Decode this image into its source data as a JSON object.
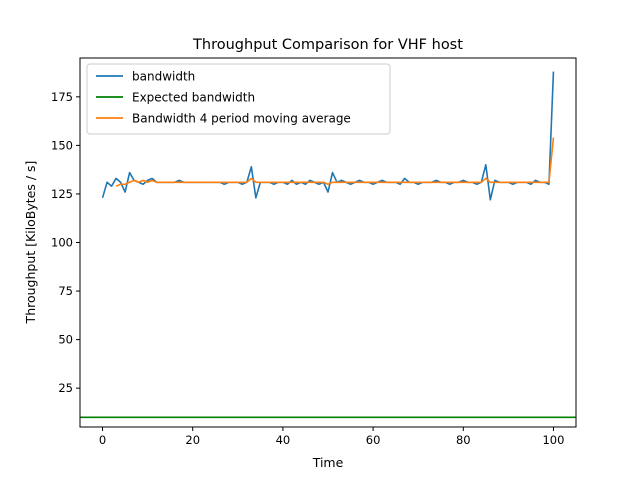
{
  "chart_data": {
    "type": "line",
    "title": "Throughput Comparison for VHF host",
    "xlabel": "Time",
    "ylabel": "Throughput [KiloBytes / s]",
    "xlim": [
      -5,
      105
    ],
    "ylim": [
      5,
      195
    ],
    "xticks": [
      0,
      20,
      40,
      60,
      80,
      100
    ],
    "yticks": [
      25,
      50,
      75,
      100,
      125,
      150,
      175
    ],
    "legend_position": "top-left",
    "series": [
      {
        "name": "bandwidth",
        "color": "#1f77b4",
        "x": [
          0,
          1,
          2,
          3,
          4,
          5,
          6,
          7,
          8,
          9,
          10,
          11,
          12,
          13,
          14,
          15,
          16,
          17,
          18,
          19,
          20,
          21,
          22,
          23,
          24,
          25,
          26,
          27,
          28,
          29,
          30,
          31,
          32,
          33,
          34,
          35,
          36,
          37,
          38,
          39,
          40,
          41,
          42,
          43,
          44,
          45,
          46,
          47,
          48,
          49,
          50,
          51,
          52,
          53,
          54,
          55,
          56,
          57,
          58,
          59,
          60,
          61,
          62,
          63,
          64,
          65,
          66,
          67,
          68,
          69,
          70,
          71,
          72,
          73,
          74,
          75,
          76,
          77,
          78,
          79,
          80,
          81,
          82,
          83,
          84,
          85,
          86,
          87,
          88,
          89,
          90,
          91,
          92,
          93,
          94,
          95,
          96,
          97,
          98,
          99,
          100
        ],
        "y": [
          123,
          131,
          129,
          133,
          131,
          126,
          136,
          132,
          131,
          130,
          132,
          133,
          131,
          131,
          131,
          131,
          131,
          132,
          131,
          131,
          131,
          131,
          131,
          131,
          131,
          131,
          131,
          130,
          131,
          131,
          131,
          130,
          131,
          139,
          123,
          131,
          131,
          131,
          130,
          131,
          131,
          130,
          132,
          130,
          131,
          130,
          132,
          131,
          130,
          131,
          126,
          136,
          131,
          132,
          131,
          130,
          131,
          132,
          131,
          131,
          130,
          131,
          132,
          131,
          131,
          131,
          130,
          133,
          131,
          131,
          130,
          131,
          131,
          131,
          132,
          131,
          131,
          130,
          131,
          131,
          132,
          131,
          131,
          130,
          131,
          140,
          122,
          132,
          131,
          131,
          131,
          130,
          131,
          131,
          131,
          130,
          132,
          131,
          131,
          130,
          188
        ]
      },
      {
        "name": "Expected bandwidth",
        "color": "#008000",
        "x": [
          -5,
          105
        ],
        "y": [
          10,
          10
        ]
      },
      {
        "name": "Bandwidth 4 period moving average",
        "color": "#ff7f0e",
        "x": [
          3,
          4,
          5,
          6,
          7,
          8,
          9,
          10,
          11,
          12,
          13,
          14,
          15,
          16,
          17,
          18,
          19,
          20,
          21,
          22,
          23,
          24,
          25,
          26,
          27,
          28,
          29,
          30,
          31,
          32,
          33,
          34,
          35,
          36,
          37,
          38,
          39,
          40,
          41,
          42,
          43,
          44,
          45,
          46,
          47,
          48,
          49,
          50,
          51,
          52,
          53,
          54,
          55,
          56,
          57,
          58,
          59,
          60,
          61,
          62,
          63,
          64,
          65,
          66,
          67,
          68,
          69,
          70,
          71,
          72,
          73,
          74,
          75,
          76,
          77,
          78,
          79,
          80,
          81,
          82,
          83,
          84,
          85,
          86,
          87,
          88,
          89,
          90,
          91,
          92,
          93,
          94,
          95,
          96,
          97,
          98,
          99,
          100
        ],
        "y": [
          129,
          130,
          130,
          131,
          132,
          131,
          132,
          131,
          132,
          131,
          131,
          131,
          131,
          131,
          131,
          131,
          131,
          131,
          131,
          131,
          131,
          131,
          131,
          131,
          131,
          131,
          131,
          131,
          131,
          131,
          133,
          131,
          131,
          131,
          131,
          131,
          131,
          131,
          131,
          131,
          131,
          131,
          131,
          131,
          131,
          131,
          131,
          130,
          131,
          131,
          131,
          131,
          131,
          131,
          131,
          131,
          131,
          131,
          131,
          131,
          131,
          131,
          131,
          131,
          131,
          131,
          131,
          131,
          131,
          131,
          131,
          131,
          131,
          131,
          131,
          131,
          131,
          131,
          131,
          131,
          131,
          131,
          133,
          131,
          131,
          131,
          131,
          131,
          131,
          131,
          131,
          131,
          131,
          131,
          131,
          131,
          131,
          154
        ]
      }
    ]
  }
}
